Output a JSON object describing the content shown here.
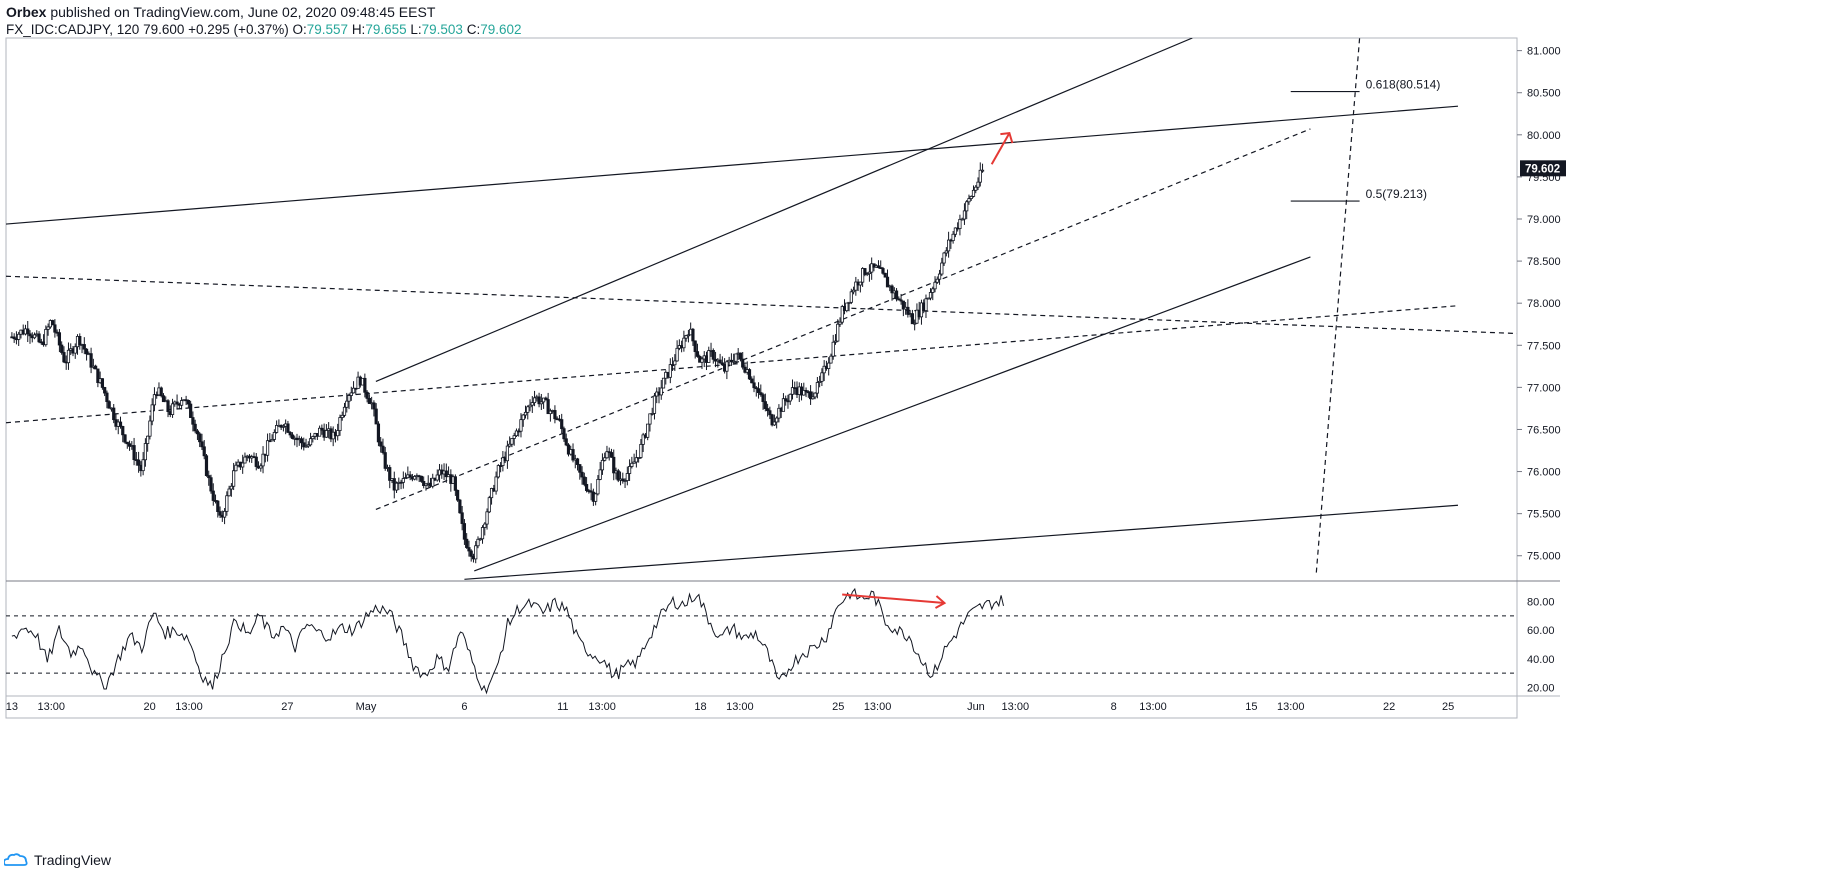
{
  "header": {
    "publisher": "Orbex",
    "published_text": "published on TradingView.com, June 02, 2020 09:48:45 EEST",
    "symbol": "FX_IDC:CADJPY, 120",
    "last": "79.600",
    "change": "+0.295 (+0.37%)",
    "open_label": "O:",
    "open": "79.557",
    "high_label": "H:",
    "high": "79.655",
    "low_label": "L:",
    "low": "79.503",
    "close_label": "C:",
    "close": "79.602"
  },
  "footer": {
    "brand": "TradingView"
  },
  "colors": {
    "up": "#26a69a",
    "annotation": "#e53935",
    "line": "#131722"
  },
  "chart_data": {
    "type": "candlestick",
    "price_axis": {
      "ticks": [
        "81.000",
        "80.500",
        "80.000",
        "79.500",
        "79.000",
        "78.500",
        "78.000",
        "77.500",
        "77.000",
        "76.500",
        "76.000",
        "75.500",
        "75.000"
      ],
      "tick_values": [
        81.0,
        80.5,
        80.0,
        79.5,
        79.0,
        78.5,
        78.0,
        77.5,
        77.0,
        76.5,
        76.0,
        75.5,
        75.0
      ],
      "range": [
        74.7,
        81.15
      ],
      "last_price_label": "79.602"
    },
    "time_axis": {
      "labels": [
        "13",
        "13:00",
        "20",
        "13:00",
        "27",
        "May",
        "6",
        "11",
        "13:00",
        "18",
        "13:00",
        "25",
        "13:00",
        "Jun",
        "13:00",
        "8",
        "13:00",
        "15",
        "13:00",
        "22",
        "25"
      ],
      "label_days": [
        0,
        2.0,
        7,
        9.0,
        14,
        18,
        23,
        28,
        30.0,
        35,
        37.0,
        42,
        44.0,
        49,
        51.0,
        56,
        58.0,
        63,
        65.0,
        70,
        73
      ],
      "start_date": "2020-04-13",
      "range_days": [
        -0.3,
        76.5
      ]
    },
    "price_path": [
      [
        0,
        77.6
      ],
      [
        0.8,
        77.7
      ],
      [
        1.5,
        77.5
      ],
      [
        2,
        77.8
      ],
      [
        2.7,
        77.3
      ],
      [
        3.4,
        77.6
      ],
      [
        4,
        77.3
      ],
      [
        4.6,
        77.0
      ],
      [
        5.3,
        76.6
      ],
      [
        6.0,
        76.3
      ],
      [
        6.6,
        76.0
      ],
      [
        7.3,
        77.0
      ],
      [
        8.0,
        76.7
      ],
      [
        8.7,
        76.9
      ],
      [
        9.4,
        76.5
      ],
      [
        10.0,
        75.9
      ],
      [
        10.6,
        75.4
      ],
      [
        11.3,
        76.0
      ],
      [
        12.0,
        76.2
      ],
      [
        12.6,
        76.1
      ],
      [
        13.2,
        76.4
      ],
      [
        13.8,
        76.6
      ],
      [
        14.4,
        76.4
      ],
      [
        15.0,
        76.3
      ],
      [
        15.7,
        76.5
      ],
      [
        16.4,
        76.4
      ],
      [
        17.0,
        76.9
      ],
      [
        17.7,
        77.1
      ],
      [
        18.3,
        76.8
      ],
      [
        18.8,
        76.2
      ],
      [
        19.4,
        75.8
      ],
      [
        20.0,
        75.9
      ],
      [
        20.6,
        76.0
      ],
      [
        21.2,
        75.8
      ],
      [
        21.8,
        76.0
      ],
      [
        22.4,
        75.9
      ],
      [
        23.0,
        75.2
      ],
      [
        23.5,
        75.0
      ],
      [
        24.1,
        75.5
      ],
      [
        24.7,
        76.0
      ],
      [
        25.3,
        76.3
      ],
      [
        25.9,
        76.6
      ],
      [
        26.5,
        76.9
      ],
      [
        27.1,
        76.8
      ],
      [
        27.8,
        76.6
      ],
      [
        28.4,
        76.2
      ],
      [
        29.0,
        75.9
      ],
      [
        29.6,
        75.7
      ],
      [
        30.2,
        76.3
      ],
      [
        30.8,
        75.9
      ],
      [
        31.4,
        76.0
      ],
      [
        32.0,
        76.3
      ],
      [
        32.6,
        76.8
      ],
      [
        33.2,
        77.1
      ],
      [
        33.8,
        77.4
      ],
      [
        34.4,
        77.7
      ],
      [
        35.0,
        77.3
      ],
      [
        35.6,
        77.4
      ],
      [
        36.2,
        77.2
      ],
      [
        36.8,
        77.4
      ],
      [
        37.4,
        77.2
      ],
      [
        38.0,
        76.9
      ],
      [
        38.6,
        76.6
      ],
      [
        39.2,
        76.8
      ],
      [
        39.8,
        77.0
      ],
      [
        40.4,
        76.9
      ],
      [
        41.0,
        77.0
      ],
      [
        41.6,
        77.4
      ],
      [
        42.2,
        77.9
      ],
      [
        42.8,
        78.2
      ],
      [
        43.4,
        78.4
      ],
      [
        44.0,
        78.4
      ],
      [
        44.6,
        78.2
      ],
      [
        45.2,
        78.0
      ],
      [
        45.8,
        77.8
      ],
      [
        46.4,
        78.0
      ],
      [
        47.0,
        78.3
      ],
      [
        47.6,
        78.7
      ],
      [
        48.2,
        79.0
      ],
      [
        48.8,
        79.3
      ],
      [
        49.4,
        79.6
      ]
    ],
    "trendlines": [
      {
        "style": "solid",
        "from": [
          -0.3,
          78.94
        ],
        "to": [
          73.5,
          80.34
        ]
      },
      {
        "style": "solid",
        "from": [
          18.5,
          77.07
        ],
        "to": [
          60,
          81.15
        ]
      },
      {
        "style": "solid",
        "from": [
          23.5,
          74.82
        ],
        "to": [
          66,
          78.55
        ]
      },
      {
        "style": "solid",
        "from": [
          23.0,
          74.72
        ],
        "to": [
          73.5,
          75.6
        ]
      },
      {
        "style": "dashed",
        "from": [
          -0.3,
          78.32
        ],
        "to": [
          76.5,
          77.64
        ]
      },
      {
        "style": "dashed",
        "from": [
          -0.3,
          76.58
        ],
        "to": [
          73.5,
          77.97
        ]
      },
      {
        "style": "dashed",
        "from": [
          18.5,
          75.55
        ],
        "to": [
          66,
          80.07
        ]
      },
      {
        "style": "dashed",
        "from": [
          66.3,
          74.8
        ],
        "to": [
          68.5,
          81.15
        ]
      }
    ],
    "fib_levels": [
      {
        "label": "0.618(80.514)",
        "value": 80.514,
        "from_day": 65.0,
        "to_day": 68.5
      },
      {
        "label": "0.5(79.213)",
        "value": 79.213,
        "from_day": 65.0,
        "to_day": 68.5
      }
    ],
    "arrow_up": {
      "from": [
        49.8,
        79.65
      ],
      "to": [
        50.7,
        80.02
      ]
    },
    "rsi": {
      "ticks": [
        "80.00",
        "60.00",
        "40.00",
        "20.00"
      ],
      "tick_values": [
        80,
        60,
        40,
        20
      ],
      "range": [
        14,
        93
      ],
      "levels": [
        70,
        30
      ],
      "path": [
        [
          0,
          55
        ],
        [
          0.6,
          62
        ],
        [
          1.2,
          58
        ],
        [
          1.8,
          38
        ],
        [
          2.4,
          60
        ],
        [
          3.0,
          44
        ],
        [
          3.6,
          50
        ],
        [
          4.2,
          28
        ],
        [
          4.8,
          22
        ],
        [
          5.4,
          40
        ],
        [
          6.0,
          56
        ],
        [
          6.6,
          48
        ],
        [
          7.2,
          72
        ],
        [
          7.8,
          58
        ],
        [
          8.4,
          60
        ],
        [
          9.0,
          54
        ],
        [
          9.6,
          30
        ],
        [
          10.2,
          20
        ],
        [
          10.8,
          46
        ],
        [
          11.4,
          68
        ],
        [
          12.0,
          56
        ],
        [
          12.6,
          70
        ],
        [
          13.2,
          56
        ],
        [
          13.8,
          62
        ],
        [
          14.4,
          48
        ],
        [
          15.0,
          64
        ],
        [
          15.6,
          58
        ],
        [
          16.2,
          56
        ],
        [
          16.8,
          62
        ],
        [
          17.4,
          60
        ],
        [
          18.0,
          70
        ],
        [
          18.6,
          76
        ],
        [
          19.2,
          72
        ],
        [
          19.8,
          56
        ],
        [
          20.4,
          36
        ],
        [
          21.0,
          28
        ],
        [
          21.6,
          40
        ],
        [
          22.2,
          34
        ],
        [
          22.8,
          60
        ],
        [
          23.4,
          38
        ],
        [
          24.0,
          18
        ],
        [
          24.6,
          30
        ],
        [
          25.2,
          64
        ],
        [
          25.8,
          76
        ],
        [
          26.4,
          78
        ],
        [
          27.0,
          72
        ],
        [
          27.6,
          79
        ],
        [
          28.2,
          74
        ],
        [
          28.8,
          52
        ],
        [
          29.4,
          44
        ],
        [
          30.0,
          40
        ],
        [
          30.6,
          28
        ],
        [
          31.2,
          34
        ],
        [
          31.8,
          38
        ],
        [
          32.4,
          56
        ],
        [
          33.0,
          70
        ],
        [
          33.6,
          80
        ],
        [
          34.2,
          78
        ],
        [
          34.8,
          86
        ],
        [
          35.4,
          68
        ],
        [
          36.0,
          54
        ],
        [
          36.6,
          62
        ],
        [
          37.2,
          54
        ],
        [
          37.8,
          58
        ],
        [
          38.4,
          44
        ],
        [
          39.0,
          22
        ],
        [
          39.6,
          36
        ],
        [
          40.2,
          44
        ],
        [
          40.8,
          48
        ],
        [
          41.4,
          56
        ],
        [
          42.0,
          78
        ],
        [
          42.6,
          86
        ],
        [
          43.2,
          82
        ],
        [
          43.8,
          85
        ],
        [
          44.4,
          66
        ],
        [
          45.0,
          60
        ],
        [
          45.6,
          56
        ],
        [
          46.2,
          40
        ],
        [
          46.8,
          28
        ],
        [
          47.4,
          46
        ],
        [
          48.0,
          58
        ],
        [
          48.6,
          70
        ],
        [
          49.2,
          76
        ],
        [
          49.8,
          79
        ],
        [
          50.4,
          81
        ]
      ],
      "divergence_arrow": {
        "from": [
          42.2,
          85
        ],
        "to": [
          47.4,
          79
        ]
      }
    }
  }
}
